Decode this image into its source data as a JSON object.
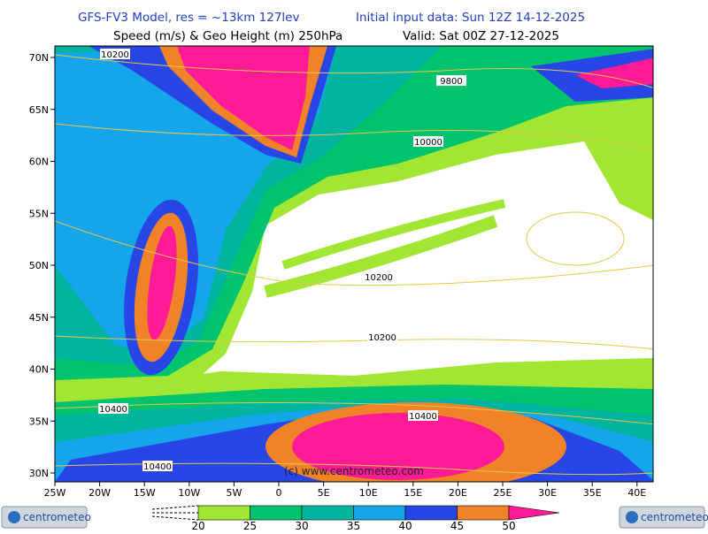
{
  "header": {
    "model": "GFS-FV3 Model, res = ~13km 127lev",
    "init": "Initial input data: Sun 12Z 14-12-2025",
    "field": "Speed (m/s) & Geo Height (m) 250hPa",
    "valid": "Valid: Sat 00Z 27-12-2025"
  },
  "map": {
    "lon_labels": [
      "25W",
      "20W",
      "15W",
      "10W",
      "5W",
      "0",
      "5E",
      "10E",
      "15E",
      "20E",
      "25E",
      "30E",
      "35E",
      "40E"
    ],
    "lat_labels": [
      "30N",
      "35N",
      "40N",
      "45N",
      "50N",
      "55N",
      "60N",
      "65N",
      "70N"
    ],
    "contour_labels": [
      "10200",
      "9800",
      "10000",
      "10200",
      "10200",
      "10400",
      "10400",
      "10400"
    ],
    "watermark": "(c) www.centrometeo.com"
  },
  "colorbar": {
    "ticks": [
      20,
      25,
      30,
      35,
      40,
      45,
      50
    ],
    "colors": [
      "#a0e632",
      "#00c36e",
      "#00b4a0",
      "#14a5eb",
      "#2846e6",
      "#f08228",
      "#ff1a96"
    ]
  },
  "logos": [
    "centrometeo",
    "centrometeo"
  ]
}
